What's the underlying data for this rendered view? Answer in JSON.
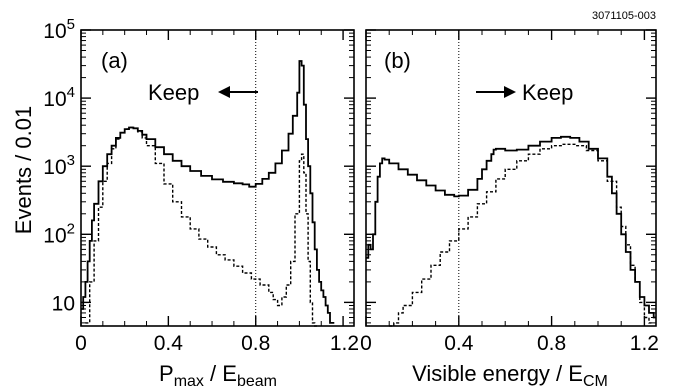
{
  "figure_id": "3071105-003",
  "chart_data": [
    {
      "type": "line",
      "panel_label": "(a)",
      "annotation": "Keep",
      "annotation_arrow": "left",
      "xlabel": {
        "main": "P",
        "sub1": "max",
        "mid": " / E",
        "sub2": "beam"
      },
      "ylabel": "Events / 0.01",
      "xlim": [
        0,
        1.25
      ],
      "ylim": [
        4.5,
        100000
      ],
      "yscale": "log",
      "xticks": [
        "0",
        "0.4",
        "0.8",
        "1.2"
      ],
      "xtick_values": [
        0,
        0.4,
        0.8,
        1.2
      ],
      "cut_line_x": 0.8,
      "series": [
        {
          "style": "solid",
          "x": [
            0.0,
            0.01,
            0.02,
            0.03,
            0.04,
            0.05,
            0.06,
            0.08,
            0.1,
            0.12,
            0.14,
            0.16,
            0.18,
            0.2,
            0.22,
            0.24,
            0.26,
            0.28,
            0.3,
            0.34,
            0.38,
            0.42,
            0.46,
            0.5,
            0.55,
            0.6,
            0.65,
            0.7,
            0.74,
            0.77,
            0.8,
            0.83,
            0.86,
            0.89,
            0.92,
            0.95,
            0.97,
            0.99,
            1.0,
            1.01,
            1.02,
            1.03,
            1.04,
            1.05,
            1.06,
            1.07,
            1.08,
            1.09,
            1.1,
            1.11,
            1.12,
            1.13,
            1.14,
            1.15
          ],
          "y": [
            8,
            12,
            20,
            40,
            80,
            160,
            280,
            600,
            1000,
            1500,
            2000,
            2600,
            3100,
            3500,
            3700,
            3600,
            3300,
            2900,
            2500,
            1900,
            1500,
            1200,
            1000,
            850,
            720,
            640,
            590,
            560,
            540,
            500,
            550,
            650,
            800,
            1100,
            1700,
            3000,
            5500,
            12000,
            35000,
            30000,
            8000,
            2500,
            1000,
            400,
            150,
            60,
            30,
            20,
            15,
            12,
            9,
            7,
            5,
            5
          ]
        },
        {
          "style": "dashed",
          "x": [
            0.02,
            0.04,
            0.06,
            0.08,
            0.1,
            0.12,
            0.14,
            0.16,
            0.18,
            0.2,
            0.22,
            0.24,
            0.26,
            0.28,
            0.3,
            0.34,
            0.38,
            0.42,
            0.46,
            0.5,
            0.54,
            0.58,
            0.62,
            0.66,
            0.7,
            0.74,
            0.78,
            0.82,
            0.86,
            0.88,
            0.9,
            0.92,
            0.94,
            0.96,
            0.98,
            1.0,
            1.01,
            1.02,
            1.03,
            1.04,
            1.05,
            1.06,
            1.07
          ],
          "y": [
            5,
            20,
            80,
            250,
            600,
            1100,
            1800,
            2500,
            3100,
            3500,
            3700,
            3600,
            3200,
            2600,
            2000,
            1100,
            550,
            300,
            180,
            120,
            85,
            65,
            50,
            42,
            34,
            27,
            22,
            18,
            14,
            11,
            9,
            12,
            18,
            40,
            200,
            1200,
            1500,
            800,
            200,
            40,
            10,
            5,
            4
          ]
        }
      ]
    },
    {
      "type": "line",
      "panel_label": "(b)",
      "annotation": "Keep",
      "annotation_arrow": "right",
      "xlabel": {
        "main": "Visible energy / E",
        "sub": "CM"
      },
      "xlim": [
        0,
        1.25
      ],
      "ylim": [
        4.5,
        100000
      ],
      "yscale": "log",
      "xticks": [
        "0",
        "0.4",
        "0.8",
        "1.2"
      ],
      "xtick_values": [
        0,
        0.4,
        0.8,
        1.2
      ],
      "cut_line_x": 0.4,
      "series": [
        {
          "style": "solid",
          "x": [
            0.0,
            0.01,
            0.02,
            0.03,
            0.04,
            0.05,
            0.06,
            0.07,
            0.08,
            0.1,
            0.14,
            0.18,
            0.22,
            0.26,
            0.3,
            0.34,
            0.38,
            0.4,
            0.44,
            0.48,
            0.5,
            0.52,
            0.54,
            0.55,
            0.56,
            0.6,
            0.65,
            0.7,
            0.75,
            0.8,
            0.84,
            0.88,
            0.92,
            0.96,
            1.0,
            1.04,
            1.06,
            1.08,
            1.1,
            1.12,
            1.14,
            1.16,
            1.18,
            1.2,
            1.22,
            1.24
          ],
          "y": [
            45,
            70,
            60,
            100,
            300,
            700,
            1100,
            1300,
            1250,
            1100,
            900,
            750,
            620,
            520,
            440,
            380,
            360,
            370,
            450,
            650,
            900,
            1200,
            1500,
            1750,
            1800,
            1700,
            1750,
            2000,
            2300,
            2600,
            2700,
            2600,
            2300,
            1800,
            1300,
            700,
            400,
            200,
            100,
            55,
            30,
            20,
            12,
            9,
            7,
            6
          ]
        },
        {
          "style": "dashed",
          "x": [
            0.1,
            0.12,
            0.14,
            0.16,
            0.2,
            0.24,
            0.28,
            0.32,
            0.36,
            0.4,
            0.44,
            0.48,
            0.52,
            0.56,
            0.6,
            0.65,
            0.7,
            0.75,
            0.8,
            0.85,
            0.9,
            0.95,
            1.0,
            1.04,
            1.08,
            1.1,
            1.12,
            1.14,
            1.16,
            1.18,
            1.2,
            1.22
          ],
          "y": [
            4,
            5,
            7,
            9,
            14,
            22,
            35,
            55,
            80,
            120,
            180,
            280,
            420,
            650,
            900,
            1200,
            1500,
            1800,
            2000,
            2100,
            2000,
            1700,
            1200,
            600,
            250,
            130,
            70,
            35,
            20,
            10,
            6,
            5
          ]
        }
      ]
    }
  ]
}
